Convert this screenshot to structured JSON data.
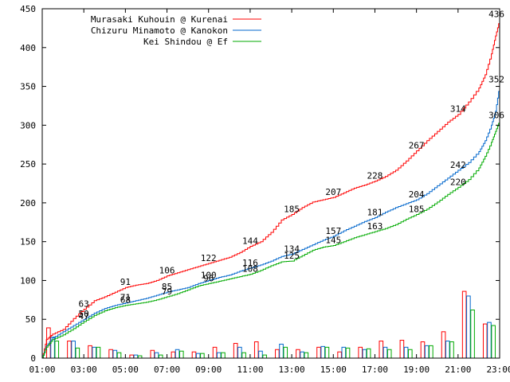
{
  "chart_data": {
    "type": "line",
    "x_unit": "hours",
    "xlim": [
      1,
      23
    ],
    "ylim": [
      0,
      450
    ],
    "yticks": [
      0,
      50,
      100,
      150,
      200,
      250,
      300,
      350,
      400,
      450
    ],
    "xticks": [
      {
        "v": 1,
        "label": "01:00"
      },
      {
        "v": 3,
        "label": "03:00"
      },
      {
        "v": 5,
        "label": "05:00"
      },
      {
        "v": 7,
        "label": "07:00"
      },
      {
        "v": 9,
        "label": "09:00"
      },
      {
        "v": 11,
        "label": "11:00"
      },
      {
        "v": 13,
        "label": "13:00"
      },
      {
        "v": 15,
        "label": "15:00"
      },
      {
        "v": 17,
        "label": "17:00"
      },
      {
        "v": 19,
        "label": "19:00"
      },
      {
        "v": 21,
        "label": "21:00"
      },
      {
        "v": 23,
        "label": "23:00"
      }
    ],
    "legend_position": "top-left",
    "series": [
      {
        "name": "Murasaki Kuhouin @ Kurenai",
        "color": "#ff0000",
        "cumulative": [
          [
            1,
            0
          ],
          [
            1.2,
            24
          ],
          [
            1.5,
            31
          ],
          [
            2,
            37
          ],
          [
            2.5,
            51
          ],
          [
            3,
            63
          ],
          [
            3.5,
            74
          ],
          [
            4,
            79
          ],
          [
            4.5,
            85
          ],
          [
            5,
            91
          ],
          [
            5.5,
            94
          ],
          [
            6,
            96
          ],
          [
            6.5,
            100
          ],
          [
            7,
            106
          ],
          [
            7.5,
            110
          ],
          [
            8,
            114
          ],
          [
            8.5,
            118
          ],
          [
            9,
            122
          ],
          [
            9.5,
            126
          ],
          [
            10,
            130
          ],
          [
            10.5,
            136
          ],
          [
            11,
            144
          ],
          [
            11.5,
            150
          ],
          [
            12,
            162
          ],
          [
            12.5,
            178
          ],
          [
            13,
            185
          ],
          [
            13.5,
            194
          ],
          [
            14,
            201
          ],
          [
            14.5,
            204
          ],
          [
            15,
            207
          ],
          [
            15.5,
            213
          ],
          [
            16,
            219
          ],
          [
            16.5,
            223
          ],
          [
            17,
            228
          ],
          [
            17.5,
            234
          ],
          [
            18,
            242
          ],
          [
            18.5,
            254
          ],
          [
            19,
            267
          ],
          [
            19.5,
            280
          ],
          [
            20,
            292
          ],
          [
            20.5,
            304
          ],
          [
            21,
            314
          ],
          [
            21.5,
            330
          ],
          [
            22,
            348
          ],
          [
            22.3,
            365
          ],
          [
            22.6,
            392
          ],
          [
            22.8,
            415
          ],
          [
            23,
            436
          ]
        ],
        "labels": [
          [
            3,
            63
          ],
          [
            5,
            91
          ],
          [
            7,
            106
          ],
          [
            9,
            122
          ],
          [
            11,
            144
          ],
          [
            13,
            185
          ],
          [
            15,
            207
          ],
          [
            17,
            228
          ],
          [
            19,
            267
          ],
          [
            21,
            314
          ],
          [
            22.85,
            436
          ]
        ]
      },
      {
        "name": "Chizuru Minamoto @ Kanokon",
        "color": "#0066cc",
        "cumulative": [
          [
            1,
            0
          ],
          [
            1.2,
            16
          ],
          [
            1.5,
            26
          ],
          [
            2,
            34
          ],
          [
            2.5,
            42
          ],
          [
            3,
            50
          ],
          [
            3.5,
            58
          ],
          [
            4,
            64
          ],
          [
            4.5,
            68
          ],
          [
            5,
            71
          ],
          [
            5.5,
            74
          ],
          [
            6,
            77
          ],
          [
            6.5,
            81
          ],
          [
            7,
            85
          ],
          [
            7.5,
            88
          ],
          [
            8,
            91
          ],
          [
            8.5,
            96
          ],
          [
            9,
            100
          ],
          [
            9.5,
            104
          ],
          [
            10,
            107
          ],
          [
            10.5,
            112
          ],
          [
            11,
            116
          ],
          [
            11.5,
            120
          ],
          [
            12,
            125
          ],
          [
            12.5,
            131
          ],
          [
            13,
            134
          ],
          [
            13.5,
            140
          ],
          [
            14,
            146
          ],
          [
            14.5,
            152
          ],
          [
            15,
            157
          ],
          [
            15.5,
            164
          ],
          [
            16,
            170
          ],
          [
            16.5,
            176
          ],
          [
            17,
            181
          ],
          [
            17.5,
            188
          ],
          [
            18,
            194
          ],
          [
            18.5,
            199
          ],
          [
            19,
            204
          ],
          [
            19.5,
            212
          ],
          [
            20,
            222
          ],
          [
            20.5,
            232
          ],
          [
            21,
            242
          ],
          [
            21.5,
            252
          ],
          [
            22,
            266
          ],
          [
            22.3,
            280
          ],
          [
            22.6,
            300
          ],
          [
            22.8,
            318
          ],
          [
            23,
            352
          ]
        ],
        "labels": [
          [
            3,
            50
          ],
          [
            5,
            71
          ],
          [
            7,
            85
          ],
          [
            9,
            100
          ],
          [
            11,
            116
          ],
          [
            13,
            134
          ],
          [
            15,
            157
          ],
          [
            17,
            181
          ],
          [
            19,
            204
          ],
          [
            21,
            242
          ],
          [
            22.85,
            352
          ]
        ]
      },
      {
        "name": "Kei Shindou @ Ef",
        "color": "#00aa00",
        "cumulative": [
          [
            1,
            0
          ],
          [
            1.2,
            14
          ],
          [
            1.5,
            24
          ],
          [
            2,
            30
          ],
          [
            2.5,
            38
          ],
          [
            3,
            47
          ],
          [
            3.5,
            55
          ],
          [
            4,
            61
          ],
          [
            4.5,
            65
          ],
          [
            5,
            68
          ],
          [
            5.5,
            70
          ],
          [
            6,
            72
          ],
          [
            6.5,
            75
          ],
          [
            7,
            79
          ],
          [
            7.5,
            83
          ],
          [
            8,
            88
          ],
          [
            8.5,
            93
          ],
          [
            9,
            96
          ],
          [
            9.5,
            99
          ],
          [
            10,
            102
          ],
          [
            10.5,
            105
          ],
          [
            11,
            108
          ],
          [
            11.5,
            113
          ],
          [
            12,
            119
          ],
          [
            12.5,
            124
          ],
          [
            13,
            125
          ],
          [
            13.5,
            132
          ],
          [
            14,
            139
          ],
          [
            14.5,
            143
          ],
          [
            15,
            145
          ],
          [
            15.5,
            150
          ],
          [
            16,
            155
          ],
          [
            16.5,
            159
          ],
          [
            17,
            163
          ],
          [
            17.5,
            167
          ],
          [
            18,
            172
          ],
          [
            18.5,
            179
          ],
          [
            19,
            185
          ],
          [
            19.5,
            192
          ],
          [
            20,
            201
          ],
          [
            20.5,
            211
          ],
          [
            21,
            220
          ],
          [
            21.5,
            230
          ],
          [
            22,
            245
          ],
          [
            22.3,
            260
          ],
          [
            22.6,
            278
          ],
          [
            22.8,
            292
          ],
          [
            23,
            306
          ]
        ],
        "labels": [
          [
            3,
            47
          ],
          [
            5,
            68
          ],
          [
            7,
            79
          ],
          [
            9,
            96
          ],
          [
            11,
            108
          ],
          [
            13,
            125
          ],
          [
            15,
            145
          ],
          [
            17,
            163
          ],
          [
            19,
            185
          ],
          [
            21,
            220
          ],
          [
            22.85,
            306
          ]
        ]
      }
    ],
    "bars": {
      "hours": [
        1,
        2,
        3,
        4,
        5,
        6,
        7,
        8,
        9,
        10,
        11,
        12,
        13,
        14,
        15,
        16,
        17,
        18,
        19,
        20,
        21,
        22
      ],
      "values": [
        [
          39,
          22,
          16,
          11,
          4,
          10,
          8,
          8,
          14,
          19,
          21,
          11,
          11,
          14,
          8,
          14,
          22,
          23,
          21,
          34,
          86,
          44
        ],
        [
          27,
          22,
          14,
          10,
          4,
          7,
          11,
          6,
          7,
          14,
          9,
          18,
          8,
          15,
          14,
          11,
          14,
          14,
          16,
          22,
          80,
          46
        ],
        [
          22,
          13,
          14,
          7,
          3,
          4,
          9,
          6,
          7,
          7,
          4,
          14,
          7,
          14,
          13,
          12,
          11,
          11,
          16,
          21,
          62,
          42
        ]
      ]
    }
  }
}
